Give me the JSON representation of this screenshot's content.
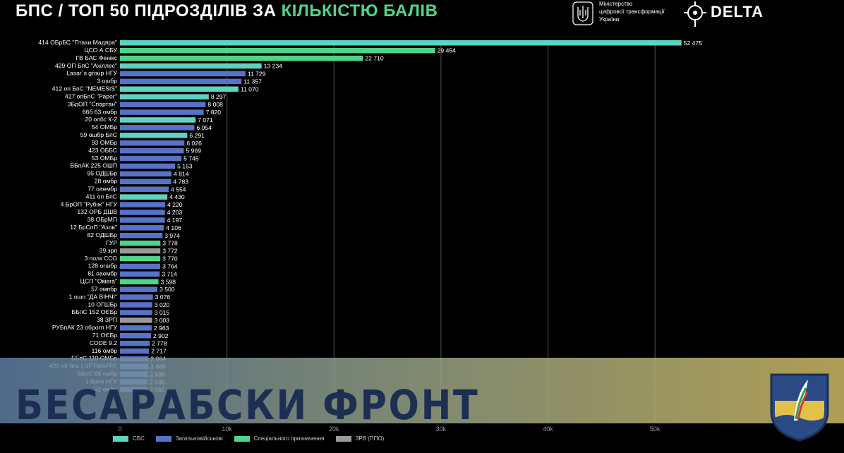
{
  "header": {
    "title_prefix": "БПС / ТОП 50 ПІДРОЗДІЛІВ ЗА ",
    "title_highlight": "КІЛЬКІСТЮ БАЛІВ",
    "ministry_lines": [
      "Міністерство",
      "цифрової трансформації",
      "України"
    ],
    "brand": "DELTA"
  },
  "watermark": {
    "text": "БЕСАРАБСКИ ФРОНТ"
  },
  "colors": {
    "СБС": "#5fd3c2",
    "Загальновійськові": "#5673c8",
    "Спеціального призначення": "#4fd58a",
    "ЗРВ (ППО)": "#9a9a9a"
  },
  "chart_data": {
    "type": "bar",
    "orientation": "horizontal",
    "xlim": [
      0,
      55000
    ],
    "xticks": [
      0,
      10000,
      20000,
      30000,
      40000,
      50000
    ],
    "xtick_labels": [
      "0",
      "10k",
      "20k",
      "30k",
      "40k",
      "50k"
    ],
    "grid": true,
    "legend_position": "bottom",
    "legend": [
      {
        "name": "СБС",
        "color": "#5fd3c2"
      },
      {
        "name": "Загальновійськові",
        "color": "#5673c8"
      },
      {
        "name": "Спеціального призначення",
        "color": "#4fd58a"
      },
      {
        "name": "ЗРВ (ППО)",
        "color": "#9a9a9a"
      }
    ],
    "bars": [
      {
        "label": "414 ОБрБС \"Птахи Мадяра\"",
        "value": 52475,
        "value_label": "52 475",
        "group": "СБС"
      },
      {
        "label": "ЦСО А СБУ",
        "value": 29454,
        "value_label": "29 454",
        "group": "Спеціального призначення"
      },
      {
        "label": "ГВ БАС Фенікс",
        "value": 22710,
        "value_label": "22 710",
        "group": "Спеціального призначення"
      },
      {
        "label": "429 ОП БпС \"Ахіллес\"",
        "value": 13234,
        "value_label": "13 234",
        "group": "СБС"
      },
      {
        "label": "Lasar`s group НГУ",
        "value": 11729,
        "value_label": "11 729",
        "group": "Загальновійськові"
      },
      {
        "label": "3 ошбр",
        "value": 11357,
        "value_label": "11 357",
        "group": "Загальновійськові"
      },
      {
        "label": "412 оп БпС \"NEMESIS\"",
        "value": 11070,
        "value_label": "11 070",
        "group": "СБС"
      },
      {
        "label": "427 опБпС \"Рарог\"",
        "value": 8297,
        "value_label": "8 297",
        "group": "СБС"
      },
      {
        "label": "3БрОП \"Спартан\"",
        "value": 8008,
        "value_label": "8 008",
        "group": "Загальновійськові"
      },
      {
        "label": "66б 63 омбр",
        "value": 7820,
        "value_label": "7 820",
        "group": "Загальновійськові"
      },
      {
        "label": "20 опбс К-2",
        "value": 7071,
        "value_label": "7 071",
        "group": "СБС"
      },
      {
        "label": "54 ОМБр",
        "value": 6954,
        "value_label": "6 954",
        "group": "Загальновійськові"
      },
      {
        "label": "59 ошбр БпС",
        "value": 6291,
        "value_label": "6 291",
        "group": "СБС"
      },
      {
        "label": "93 ОМБр",
        "value": 6026,
        "value_label": "6 026",
        "group": "Загальновійськові"
      },
      {
        "label": "423 ОББС",
        "value": 5969,
        "value_label": "5 969",
        "group": "Загальновійськові"
      },
      {
        "label": "53 ОМБр",
        "value": 5745,
        "value_label": "5 745",
        "group": "Загальновійськові"
      },
      {
        "label": "ББпАК 225 ОШП",
        "value": 5153,
        "value_label": "5 153",
        "group": "Загальновійськові"
      },
      {
        "label": "95 ОДШБр",
        "value": 4814,
        "value_label": "4 814",
        "group": "Загальновійськові"
      },
      {
        "label": "28 омбр",
        "value": 4783,
        "value_label": "4 783",
        "group": "Загальновійськові"
      },
      {
        "label": "77 оаембр",
        "value": 4554,
        "value_label": "4 554",
        "group": "Загальновійськові"
      },
      {
        "label": "411 оп БпС",
        "value": 4430,
        "value_label": "4 430",
        "group": "СБС"
      },
      {
        "label": "4 БрОП \"Рубіж\" НГУ",
        "value": 4220,
        "value_label": "4 220",
        "group": "Загальновійськові"
      },
      {
        "label": "132 ОРБ ДШВ",
        "value": 4203,
        "value_label": "4 203",
        "group": "Загальновійськові"
      },
      {
        "label": "38 ОБрМП",
        "value": 4197,
        "value_label": "4 197",
        "group": "Загальновійськові"
      },
      {
        "label": "12 БрСпП \"Азов\"",
        "value": 4106,
        "value_label": "4 106",
        "group": "Загальновійськові"
      },
      {
        "label": "82 ОДШБр",
        "value": 3974,
        "value_label": "3 974",
        "group": "Загальновійськові"
      },
      {
        "label": "ГУР",
        "value": 3778,
        "value_label": "3 778",
        "group": "Спеціального призначення"
      },
      {
        "label": "39 зрп",
        "value": 3772,
        "value_label": "3 772",
        "group": "ЗРВ (ППО)"
      },
      {
        "label": "3 полк ССО",
        "value": 3770,
        "value_label": "3 770",
        "group": "Спеціального призначення"
      },
      {
        "label": "128 огшбр",
        "value": 3764,
        "value_label": "3 764",
        "group": "Загальновійськові"
      },
      {
        "label": "81 оаембр",
        "value": 3714,
        "value_label": "3 714",
        "group": "Загальновійськові"
      },
      {
        "label": "ЦСП \"Омега\"",
        "value": 3598,
        "value_label": "3 598",
        "group": "Спеціального призначення"
      },
      {
        "label": "57 омпбр",
        "value": 3500,
        "value_label": "3 500",
        "group": "Загальновійськові"
      },
      {
        "label": "1 ошп \"ДА ВІНЧІ\"",
        "value": 3076,
        "value_label": "3 076",
        "group": "Загальновійськові"
      },
      {
        "label": "10 ОГШБр",
        "value": 3020,
        "value_label": "3 020",
        "group": "Загальновійськові"
      },
      {
        "label": "ББпС 152 ОЄБр",
        "value": 3015,
        "value_label": "3 015",
        "group": "Загальновійськові"
      },
      {
        "label": "38 ЗРП",
        "value": 3003,
        "value_label": "3 003",
        "group": "ЗРВ (ППО)"
      },
      {
        "label": "РУБпАК 23 оброгп НГУ",
        "value": 2963,
        "value_label": "2 963",
        "group": "Загальновійськові"
      },
      {
        "label": "71 ОЄБр",
        "value": 2902,
        "value_label": "2 902",
        "group": "Загальновійськові"
      },
      {
        "label": "CODE 9.2",
        "value": 2778,
        "value_label": "2 778",
        "group": "Загальновійськові"
      },
      {
        "label": "116 омбр",
        "value": 2717,
        "value_label": "2 717",
        "group": "Загальновійськові"
      },
      {
        "label": "ББпС 110 ОМБр",
        "value": 2664,
        "value_label": "2 664",
        "group": "Загальновійськові"
      },
      {
        "label": "422 об бпс LUFTWAFFE",
        "value": 2660,
        "value_label": "2 660",
        "group": "Загальновійськові"
      },
      {
        "label": "ББпС 65 омбр",
        "value": 2598,
        "value_label": "2 598",
        "group": "Загальновійськові"
      },
      {
        "label": "1 броп НГУ",
        "value": 2590,
        "value_label": "2 590",
        "group": "Загальновійськові"
      },
      {
        "label": "32 омбр",
        "value": 2562,
        "value_label": "2 562",
        "group": "Загальновійськові"
      }
    ]
  }
}
